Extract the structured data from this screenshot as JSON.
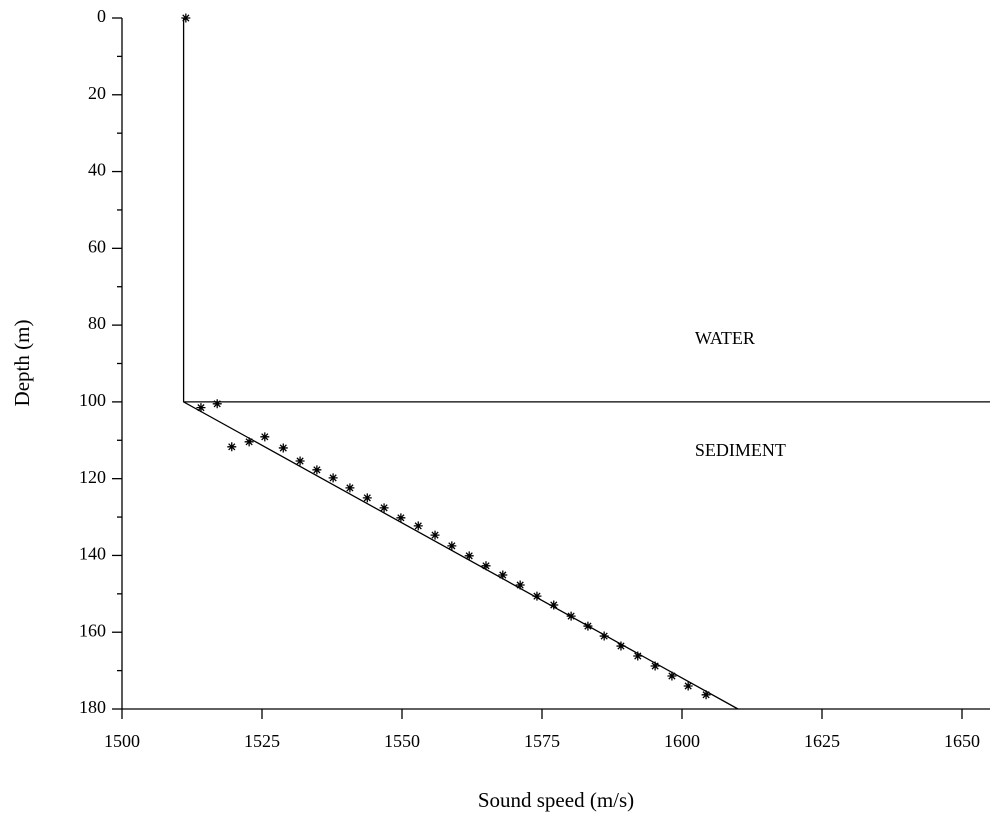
{
  "chart_data": {
    "type": "line",
    "xlabel": "Sound speed (m/s)",
    "ylabel": "Depth (m)",
    "xlim": [
      1500,
      1655
    ],
    "xticks": [
      1500,
      1525,
      1550,
      1575,
      1600,
      1625,
      1650
    ],
    "ylim": [
      0,
      180
    ],
    "yticks": [
      0,
      20,
      40,
      60,
      80,
      100,
      120,
      140,
      160,
      180
    ],
    "yminorticks": [
      10,
      30,
      50,
      70,
      90,
      110,
      130,
      150,
      170
    ],
    "y_inverted": true,
    "color": "#000000",
    "series": [
      {
        "mode": "line",
        "x": [
          1511,
          1511,
          1610
        ],
        "values": [
          0,
          100,
          180
        ]
      },
      {
        "mode": "line",
        "x": [
          1511,
          1655
        ],
        "values": [
          100,
          100
        ]
      },
      {
        "mode": "markers",
        "x": [
          1511.4,
          1514.1,
          1517.0,
          1519.6,
          1522.7,
          1525.5,
          1528.8,
          1531.8,
          1534.8,
          1537.7,
          1540.7,
          1543.8,
          1546.8,
          1549.8,
          1552.9,
          1555.9,
          1558.9,
          1562.0,
          1565.0,
          1568.0,
          1571.1,
          1574.1,
          1577.1,
          1580.2,
          1583.2,
          1586.1,
          1589.1,
          1592.1,
          1595.2,
          1598.2,
          1601.1,
          1604.3
        ],
        "values": [
          0,
          101.5,
          100.5,
          111.7,
          110.4,
          109.1,
          112.0,
          115.4,
          117.7,
          119.8,
          122.4,
          125.0,
          127.6,
          130.2,
          132.3,
          134.7,
          137.5,
          140.1,
          142.7,
          145.1,
          147.7,
          150.6,
          152.9,
          155.8,
          158.4,
          161.0,
          163.6,
          166.2,
          168.8,
          171.4,
          174.0,
          176.3
        ]
      }
    ],
    "annotations": [
      {
        "text": "WATER",
        "x": 1602.3,
        "y": 83.9
      },
      {
        "text": "SEDIMENT",
        "x": 1602.3,
        "y": 113.0
      }
    ]
  }
}
